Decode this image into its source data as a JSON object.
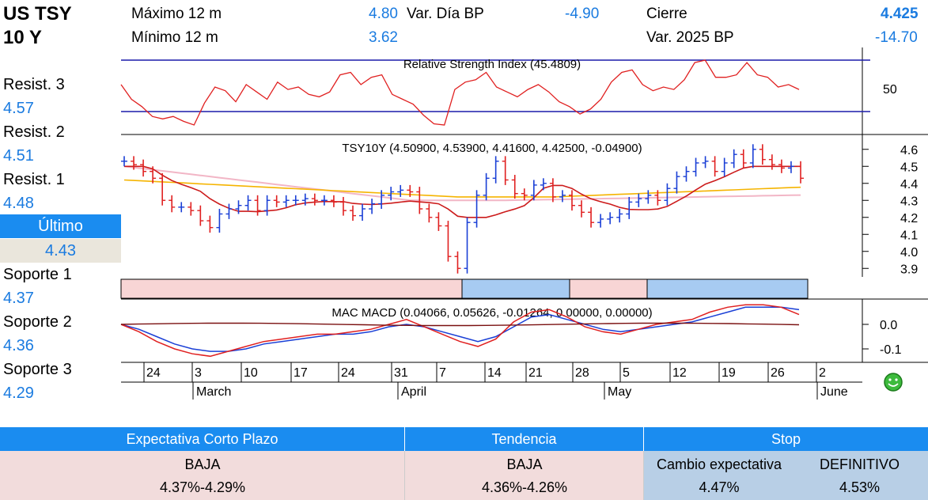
{
  "header": {
    "title_line1": "US TSY",
    "title_line2": "10 Y",
    "max12_label": "Máximo 12 m",
    "max12_value": "4.80",
    "min12_label": "Mínimo 12 m",
    "min12_value": "3.62",
    "var_dia_label": "Var. Día BP",
    "var_dia_value": "-4.90",
    "cierre_label": "Cierre",
    "cierre_value": "4.425",
    "var2025_label": "Var. 2025 BP",
    "var2025_value": "-14.70"
  },
  "levels": {
    "resist3_label": "Resist. 3",
    "resist3_value": "4.57",
    "resist2_label": "Resist. 2",
    "resist2_value": "4.51",
    "resist1_label": "Resist. 1",
    "resist1_value": "4.48",
    "ultimo_label": "Último",
    "ultimo_value": "4.43",
    "soporte1_label": "Soporte 1",
    "soporte1_value": "4.37",
    "soporte2_label": "Soporte 2",
    "soporte2_value": "4.36",
    "soporte3_label": "Soporte 3",
    "soporte3_value": "4.29"
  },
  "chart_data": [
    {
      "type": "line",
      "title": "Relative Strength Index (45.4809)",
      "yticks": [
        "50"
      ],
      "series": [
        {
          "values": [
            60,
            48,
            42,
            34,
            32,
            34,
            30,
            27,
            45,
            58,
            55,
            46,
            60,
            54,
            48,
            62,
            56,
            58,
            52,
            50,
            54,
            68,
            70,
            60,
            66,
            68,
            52,
            48,
            44,
            35,
            28,
            27,
            56,
            62,
            64,
            70,
            58,
            54,
            50,
            56,
            60,
            54,
            46,
            42,
            36,
            40,
            48,
            62,
            70,
            72,
            60,
            55,
            58,
            56,
            64,
            78,
            80,
            66,
            66,
            68,
            78,
            68,
            66,
            58,
            60,
            56
          ]
        }
      ]
    },
    {
      "type": "bar",
      "title": "TSY10Y (4.50900, 4.53900, 4.41600, 4.42500, -0.04900)",
      "yticks": [
        "4.6",
        "4.5",
        "4.4",
        "4.3",
        "4.2",
        "4.1",
        "4.0",
        "3.9"
      ],
      "ylim": [
        3.85,
        4.65
      ],
      "series": [
        {
          "values": [
            4.53,
            4.51,
            4.47,
            4.43,
            4.3,
            4.26,
            4.26,
            4.24,
            4.18,
            4.14,
            4.22,
            4.25,
            4.27,
            4.3,
            4.24,
            4.3,
            4.29,
            4.3,
            4.3,
            4.31,
            4.3,
            4.3,
            4.29,
            4.24,
            4.21,
            4.25,
            4.28,
            4.33,
            4.35,
            4.36,
            4.35,
            4.25,
            4.2,
            4.15,
            3.97,
            3.9,
            4.17,
            4.33,
            4.43,
            4.53,
            4.42,
            4.34,
            4.33,
            4.39,
            4.4,
            4.32,
            4.33,
            4.27,
            4.23,
            4.17,
            4.19,
            4.2,
            4.22,
            4.29,
            4.31,
            4.33,
            4.3,
            4.37,
            4.44,
            4.47,
            4.52,
            4.53,
            4.47,
            4.52,
            4.57,
            4.52,
            4.6,
            4.54,
            4.51,
            4.49,
            4.5,
            4.43
          ]
        }
      ]
    },
    {
      "type": "line",
      "title": "MAC MACD (0.04066, 0.05626, -0.01264, 0.00000, 0.00000)",
      "yticks": [
        "0.0",
        "-0.1"
      ],
      "series": [
        {
          "values": [
            0.0,
            -0.02,
            -0.05,
            -0.08,
            -0.1,
            -0.11,
            -0.11,
            -0.1,
            -0.08,
            -0.07,
            -0.06,
            -0.05,
            -0.04,
            -0.04,
            -0.03,
            -0.01,
            0.0,
            -0.01,
            -0.03,
            -0.05,
            -0.07,
            -0.05,
            -0.01,
            0.03,
            0.04,
            0.02,
            0.0,
            -0.02,
            -0.03,
            -0.02,
            -0.01,
            0.0,
            0.01,
            0.03,
            0.05,
            0.07,
            0.07,
            0.07,
            0.06
          ]
        },
        {
          "values": [
            0.0,
            -0.03,
            -0.07,
            -0.1,
            -0.12,
            -0.13,
            -0.11,
            -0.09,
            -0.07,
            -0.06,
            -0.05,
            -0.04,
            -0.04,
            -0.03,
            -0.02,
            0.0,
            0.02,
            -0.01,
            -0.04,
            -0.07,
            -0.09,
            -0.06,
            0.01,
            0.05,
            0.06,
            0.03,
            -0.01,
            -0.03,
            -0.04,
            -0.02,
            0.0,
            0.01,
            0.02,
            0.05,
            0.07,
            0.08,
            0.08,
            0.07,
            0.04
          ]
        }
      ]
    }
  ],
  "xaxis": {
    "days": [
      "24",
      "3",
      "10",
      "17",
      "24",
      "31",
      "7",
      "14",
      "21",
      "28",
      "5",
      "12",
      "19",
      "26",
      "2"
    ],
    "months": [
      "March",
      "April",
      "May",
      "June"
    ]
  },
  "regime_bar": {
    "colors": [
      "#f8d5d5",
      "#a7cbf2",
      "#f8d5d5",
      "#a7cbf2"
    ]
  },
  "colors": {
    "accent": "#1a8cf0",
    "up": "#1a3fd6",
    "down": "#e02020",
    "ma_pink": "#f2b6c6",
    "ma_orange": "#f5b400"
  },
  "table": {
    "col1_header": "Expectativa Corto Plazo",
    "col2_header": "Tendencia",
    "col3_header": "Stop",
    "col1_row1": "BAJA",
    "col1_row2": "4.37%-4.29%",
    "col2_row1": "BAJA",
    "col2_row2": "4.36%-4.26%",
    "stop_cambio_label": "Cambio expectativa",
    "stop_definitivo_label": "DEFINITIVO",
    "stop_cambio_value": "4.47%",
    "stop_definitivo_value": "4.53%"
  }
}
